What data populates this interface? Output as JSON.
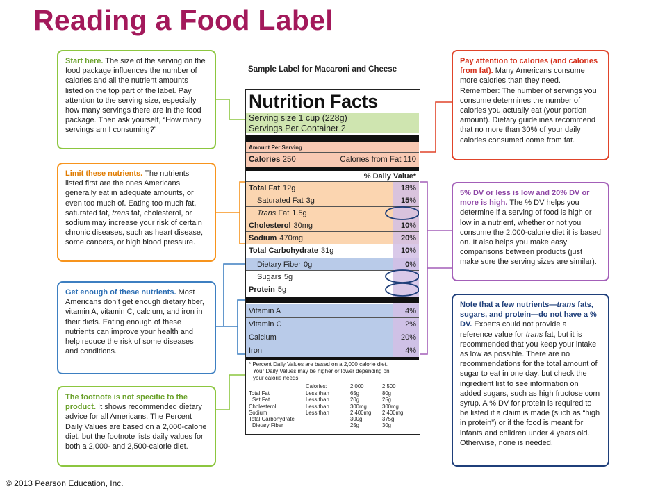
{
  "title": "Reading a Food Label",
  "copyright": "© 2013 Pearson Education, Inc.",
  "sample_label_title": "Sample Label for Macaroni and Cheese",
  "label": {
    "heading": "Nutrition Facts",
    "serving_size": "Serving size 1 cup (228g)",
    "servings_per_container": "Servings Per Container 2",
    "amount_per_serving": "Amount Per Serving",
    "calories_label": "Calories",
    "calories_value": "250",
    "calories_from_fat": "Calories from Fat 110",
    "dv_header": "% Daily Value*",
    "nutrients": [
      {
        "name": "Total Fat",
        "amount": "12g",
        "dv": "18",
        "pct": "%",
        "bold": true
      },
      {
        "name": "Saturated Fat",
        "amount": "3g",
        "dv": "15",
        "pct": "%",
        "bold": false
      },
      {
        "name": "Trans",
        "name2": " Fat",
        "amount": "1.5g",
        "dv": "",
        "pct": "",
        "bold": false
      },
      {
        "name": "Cholesterol",
        "amount": "30mg",
        "dv": "10",
        "pct": "%",
        "bold": true
      },
      {
        "name": "Sodium",
        "amount": "470mg",
        "dv": "20",
        "pct": "%",
        "bold": true
      },
      {
        "name": "Total Carbohydrate",
        "amount": "31g",
        "dv": "10",
        "pct": "%",
        "bold": true
      },
      {
        "name": "Dietary Fiber",
        "amount": "0g",
        "dv": "0",
        "pct": "%",
        "bold": false
      },
      {
        "name": "Sugars",
        "amount": "5g",
        "dv": "",
        "pct": "",
        "bold": false
      },
      {
        "name": "Protein",
        "amount": "5g",
        "dv": "",
        "pct": "",
        "bold": true
      }
    ],
    "vitamins": [
      {
        "name": "Vitamin A",
        "dv": "4%"
      },
      {
        "name": "Vitamin C",
        "dv": "2%"
      },
      {
        "name": "Calcium",
        "dv": "20%"
      },
      {
        "name": "Iron",
        "dv": "4%"
      }
    ],
    "footnote": [
      "* Percent Daily Values are based on a 2,000 calorie diet.",
      "Your Daily Values may be higher or lower depending on",
      "your calorie needs:"
    ],
    "footnote_table": {
      "header": [
        "",
        "Calories:",
        "2,000",
        "2,500"
      ],
      "rows": [
        [
          "Total Fat",
          "Less than",
          "65g",
          "80g"
        ],
        [
          "Sat Fat",
          "Less than",
          "20g",
          "25g"
        ],
        [
          "Cholesterol",
          "Less than",
          "300mg",
          "300mg"
        ],
        [
          "Sodium",
          "Less than",
          "2,400mg",
          "2,400mg"
        ],
        [
          "Total Carbohydrate",
          "",
          "300g",
          "375g"
        ],
        [
          "Dietary Fiber",
          "",
          "25g",
          "30g"
        ]
      ]
    }
  },
  "annotations": {
    "start_here": {
      "heading": "Start here.",
      "body": " The size of the serving on the food package influences the number of calories and all the nutrient amounts listed on the top part of the label. Pay attention to the serving size, especially how many servings there are in the food package. Then ask yourself, “How many servings am I consuming?”"
    },
    "limit": {
      "heading": "Limit these nutrients.",
      "body_a": " The nutrients listed first are the ones Americans generally eat in adequate amounts, or even too much of. Eating too much fat, saturated fat, ",
      "body_italic": "trans",
      "body_b": " fat, cholesterol, or sodium may increase your risk of certain chronic diseases, such as heart disease, some cancers, or high blood pressure."
    },
    "enough": {
      "heading": "Get enough of these nutrients.",
      "body": " Most Americans don’t get enough dietary fiber, vitamin A, vitamin C, calcium, and iron in their diets. Eating enough of these nutrients can improve your health and help reduce the risk of some diseases and conditions."
    },
    "footnote_note": {
      "heading": "The footnote is not specific to the product.",
      "body": " It shows recommended dietary advice for all Americans. The Percent Daily Values are based on a 2,000-calorie diet, but the footnote lists daily values for both a 2,000- and 2,500-calorie diet."
    },
    "calories": {
      "heading": "Pay attention to calories (and calories from fat).",
      "body": " Many Americans consume more calories than they need. Remember: The number of servings you consume determines the number of calories you actually eat (your portion amount). Dietary guidelines recommend that no more than 30% of your daily calories consumed come from fat."
    },
    "dv": {
      "heading": "5% DV or less is low and 20% DV or more is high.",
      "body": " The % DV helps you determine if a serving of food is high or low in a nutrient, whether or not you consume the 2,000-calorie diet it is based on. It also helps you make easy comparisons between products (just make sure the serving sizes are similar)."
    },
    "no_dv": {
      "heading_a": "Note that a few nutrients—",
      "heading_italic": "trans",
      "heading_b": " fats, sugars, and protein—do not have a % DV.",
      "body_a": " Experts could not provide a reference value for ",
      "body_italic": "trans",
      "body_b": " fat, but it is recommended that you keep your intake as low as possible. There are no recommendations for the total amount of sugar to eat in one day, but check the ingredient list to see information on added sugars, such as high fructose corn syrup. A % DV for protein is required to be listed if a claim is made (such as “high in protein”) or if the food is meant for infants and children under 4 years old. Otherwise, none is needed."
    }
  },
  "colors": {
    "title": "#a3195b",
    "serving_band": "#cfe5b0",
    "calories_band": "#f8c9b3",
    "limit_band": "#fbd5b0",
    "enough_band": "#b9cbe9",
    "dv_column": "#d2bfe5"
  }
}
